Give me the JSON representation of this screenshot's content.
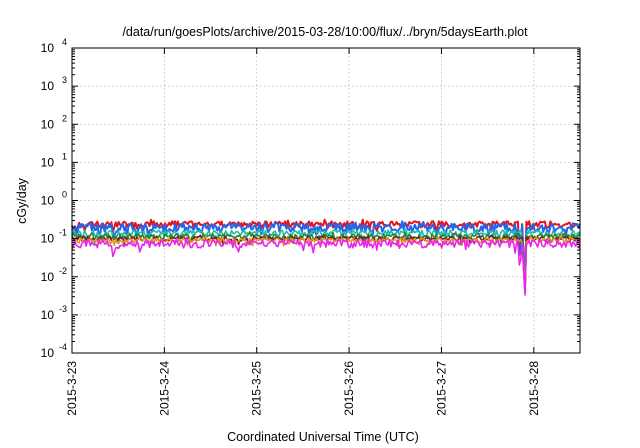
{
  "chart_data": {
    "type": "line",
    "title": "/data/run/goesPlots/archive/2015-03-28/10:00/flux/../bryn/5daysEarth.plot",
    "xlabel": "Coordinated Universal Time (UTC)",
    "ylabel": "cGy/day",
    "y_scale": "log",
    "ylim": [
      0.0001,
      10000
    ],
    "xlim": [
      "2015-3-23",
      "2015-3-28 12:00"
    ],
    "y_ticks": [
      {
        "value": 0.0001,
        "base": "10",
        "exp": "-4"
      },
      {
        "value": 0.001,
        "base": "10",
        "exp": "-3"
      },
      {
        "value": 0.01,
        "base": "10",
        "exp": "-2"
      },
      {
        "value": 0.1,
        "base": "10",
        "exp": "-1"
      },
      {
        "value": 1,
        "base": "10",
        "exp": "0"
      },
      {
        "value": 10,
        "base": "10",
        "exp": "1"
      },
      {
        "value": 100,
        "base": "10",
        "exp": "2"
      },
      {
        "value": 1000,
        "base": "10",
        "exp": "3"
      },
      {
        "value": 10000,
        "base": "10",
        "exp": "4"
      }
    ],
    "x_ticks": [
      {
        "day": 0,
        "label": "2015-3-23"
      },
      {
        "day": 1,
        "label": "2015-3-24"
      },
      {
        "day": 2,
        "label": "2015-3-25"
      },
      {
        "day": 3,
        "label": "2015-3-26"
      },
      {
        "day": 4,
        "label": "2015-3-27"
      },
      {
        "day": 5,
        "label": "2015-3-28"
      }
    ],
    "grid": true,
    "series": [
      {
        "color": "#ee1111",
        "base": 0.24,
        "noise": 0.05,
        "dips": [
          [
            0.05,
            0.16
          ],
          [
            0.45,
            0.15
          ],
          [
            0.7,
            0.17
          ],
          [
            2.05,
            0.17
          ],
          [
            3.3,
            0.16
          ],
          [
            3.95,
            0.18
          ],
          [
            4.85,
            0.018
          ],
          [
            4.9,
            0.0017
          ]
        ]
      },
      {
        "color": "#2266ee",
        "base": 0.2,
        "noise": 0.06,
        "dips": [
          [
            0.05,
            0.12
          ],
          [
            0.3,
            0.1
          ],
          [
            0.45,
            0.09
          ],
          [
            0.7,
            0.11
          ],
          [
            1.4,
            0.12
          ],
          [
            2.05,
            0.12
          ],
          [
            3.25,
            0.1
          ],
          [
            3.95,
            0.12
          ],
          [
            4.85,
            0.012
          ],
          [
            4.9,
            0.0014
          ],
          [
            5.35,
            0.11
          ]
        ]
      },
      {
        "color": "#22bbaa",
        "base": 0.14,
        "noise": 0.03,
        "dips": [
          [
            0.45,
            0.1
          ],
          [
            4.9,
            0.0016
          ]
        ]
      },
      {
        "color": "#228833",
        "base": 0.115,
        "noise": 0.02,
        "dips": [
          [
            4.9,
            0.0016
          ]
        ]
      },
      {
        "color": "#7a1f2b",
        "base": 0.1,
        "noise": 0.015,
        "dips": [
          [
            4.9,
            0.0015
          ]
        ]
      },
      {
        "color": "#dd9922",
        "base": 0.09,
        "noise": 0.015,
        "dips": [
          [
            4.9,
            0.0015
          ]
        ]
      },
      {
        "color": "#ee22ee",
        "base": 0.075,
        "noise": 0.02,
        "dips": [
          [
            0.0,
            0.05
          ],
          [
            0.45,
            0.024
          ],
          [
            0.75,
            0.055
          ],
          [
            1.4,
            0.055
          ],
          [
            2.1,
            0.055
          ],
          [
            3.3,
            0.05
          ],
          [
            4.0,
            0.055
          ],
          [
            4.85,
            0.01
          ],
          [
            4.9,
            0.0013
          ],
          [
            5.2,
            0.06
          ]
        ]
      }
    ]
  }
}
